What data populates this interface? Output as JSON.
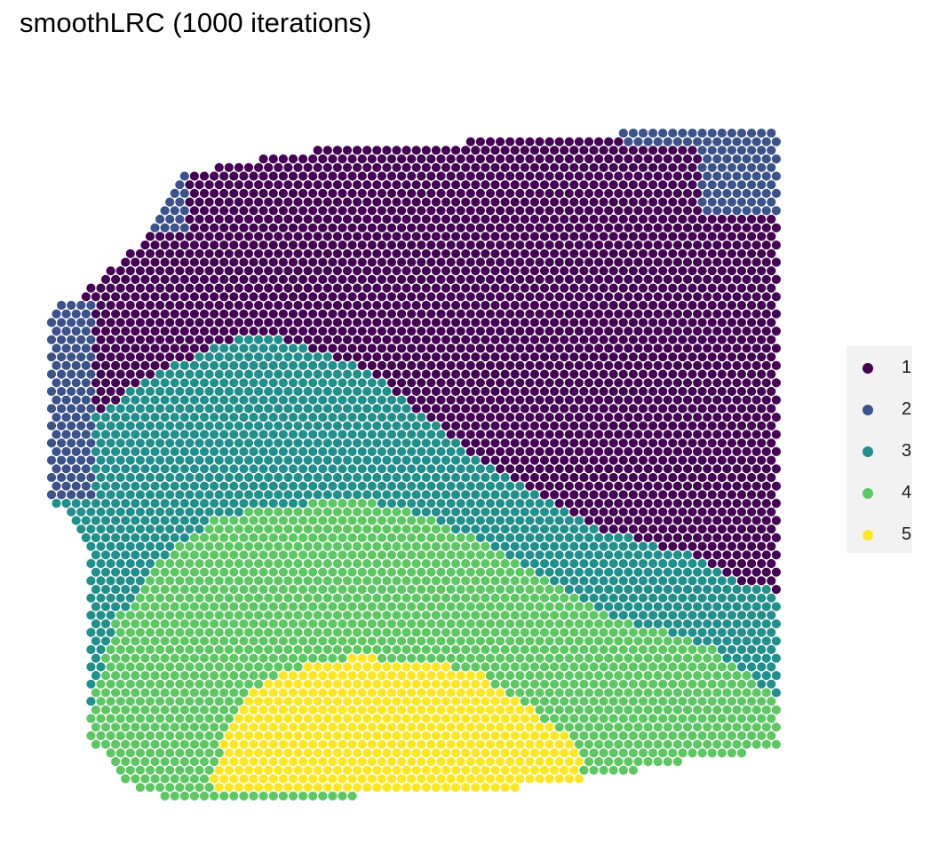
{
  "chart_data": {
    "type": "scatter",
    "title": "smoothLRC (1000 iterations)",
    "legend_position": "right",
    "clusters": [
      {
        "name": "1",
        "color": "#440154"
      },
      {
        "name": "2",
        "color": "#3b528b"
      },
      {
        "name": "3",
        "color": "#21908c"
      },
      {
        "name": "4",
        "color": "#5dc863"
      },
      {
        "name": "5",
        "color": "#fde725"
      }
    ]
  }
}
